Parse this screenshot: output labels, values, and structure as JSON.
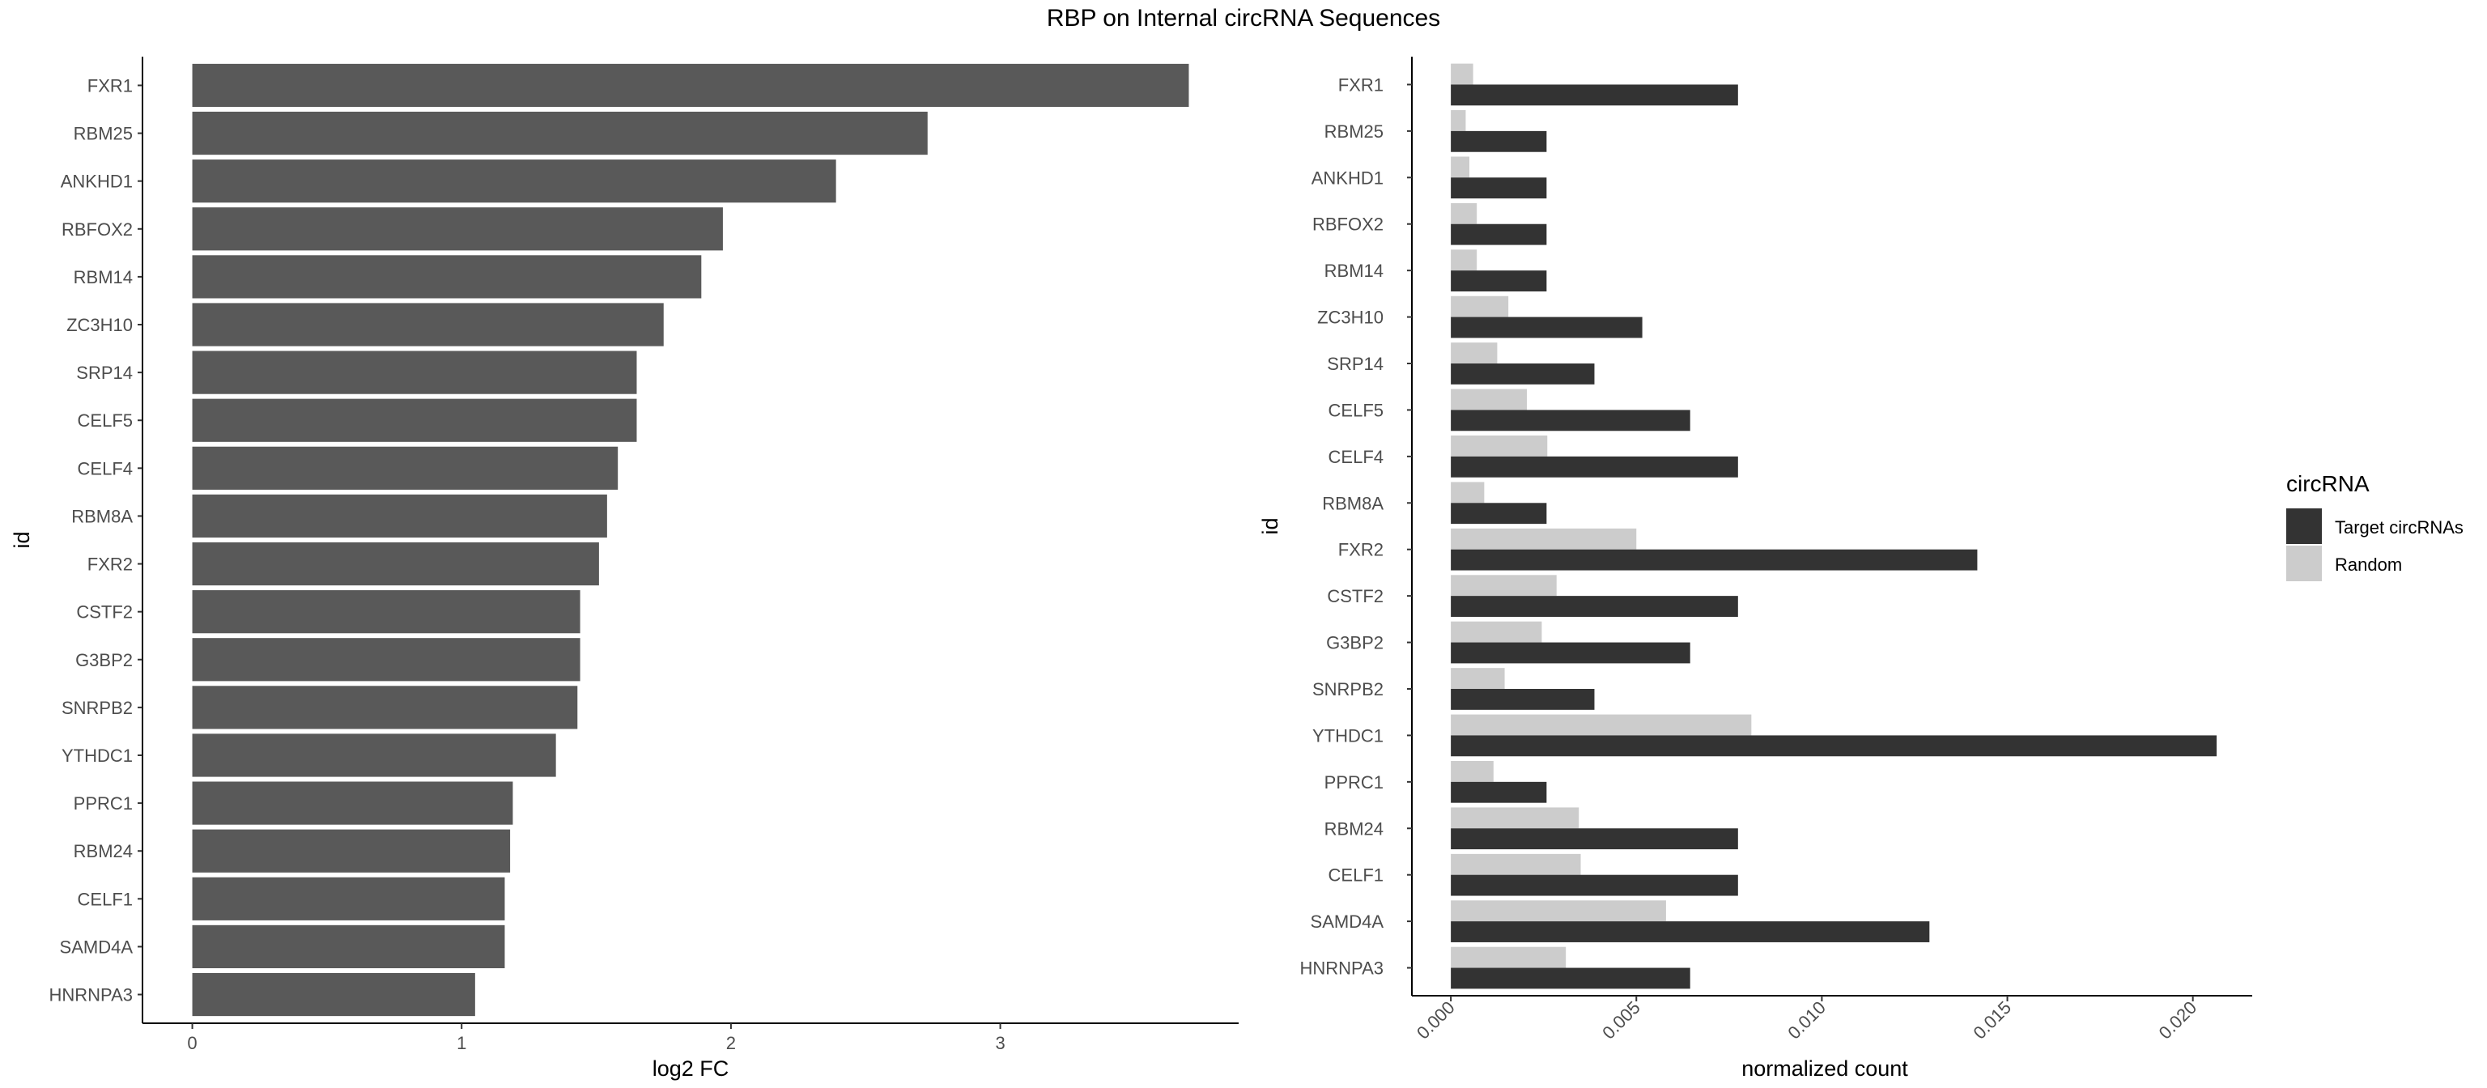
{
  "figure": {
    "title": "RBP on Internal circRNA Sequences"
  },
  "colors": {
    "bar_single": "#595959",
    "target": "#333333",
    "random": "#cccccc",
    "axis": "#000000",
    "tick_label": "#4d4d4d"
  },
  "chart_data": [
    {
      "type": "bar",
      "orientation": "horizontal",
      "categories": [
        "FXR1",
        "RBM25",
        "ANKHD1",
        "RBFOX2",
        "RBM14",
        "ZC3H10",
        "SRP14",
        "CELF5",
        "CELF4",
        "RBM8A",
        "FXR2",
        "CSTF2",
        "G3BP2",
        "SNRPB2",
        "YTHDC1",
        "PPRC1",
        "RBM24",
        "CELF1",
        "SAMD4A",
        "HNRNPA3"
      ],
      "values": [
        3.7,
        2.73,
        2.39,
        1.97,
        1.89,
        1.75,
        1.65,
        1.65,
        1.58,
        1.54,
        1.51,
        1.44,
        1.44,
        1.43,
        1.35,
        1.19,
        1.18,
        1.16,
        1.16,
        1.05
      ],
      "xlabel": "log2 FC",
      "ylabel": "id",
      "xticks": [
        "0",
        "1",
        "2",
        "3"
      ],
      "xlim": [
        -0.185,
        3.885
      ],
      "grid": false
    },
    {
      "type": "bar",
      "orientation": "horizontal",
      "grouped": true,
      "categories": [
        "FXR1",
        "RBM25",
        "ANKHD1",
        "RBFOX2",
        "RBM14",
        "ZC3H10",
        "SRP14",
        "CELF5",
        "CELF4",
        "RBM8A",
        "FXR2",
        "CSTF2",
        "G3BP2",
        "SNRPB2",
        "YTHDC1",
        "PPRC1",
        "RBM24",
        "CELF1",
        "SAMD4A",
        "HNRNPA3"
      ],
      "series": [
        {
          "name": "Target circRNAs",
          "values": [
            0.00774,
            0.00258,
            0.00258,
            0.00258,
            0.00258,
            0.00516,
            0.00387,
            0.00645,
            0.00774,
            0.00258,
            0.01419,
            0.00774,
            0.00645,
            0.00387,
            0.02064,
            0.00258,
            0.00774,
            0.00774,
            0.0129,
            0.00645
          ]
        },
        {
          "name": "Random",
          "values": [
            0.0006,
            0.0004,
            0.0005,
            0.0007,
            0.0007,
            0.00155,
            0.00125,
            0.00205,
            0.0026,
            0.0009,
            0.005,
            0.00285,
            0.00245,
            0.00145,
            0.0081,
            0.00115,
            0.00345,
            0.0035,
            0.0058,
            0.0031
          ]
        }
      ],
      "xlabel": "normalized count",
      "ylabel": "id",
      "xticks": [
        "0.000",
        "0.005",
        "0.010",
        "0.015",
        "0.020"
      ],
      "xlim": [
        -0.00105,
        0.0216
      ],
      "legend": {
        "title": "circRNA",
        "position": "right"
      },
      "grid": false
    }
  ]
}
